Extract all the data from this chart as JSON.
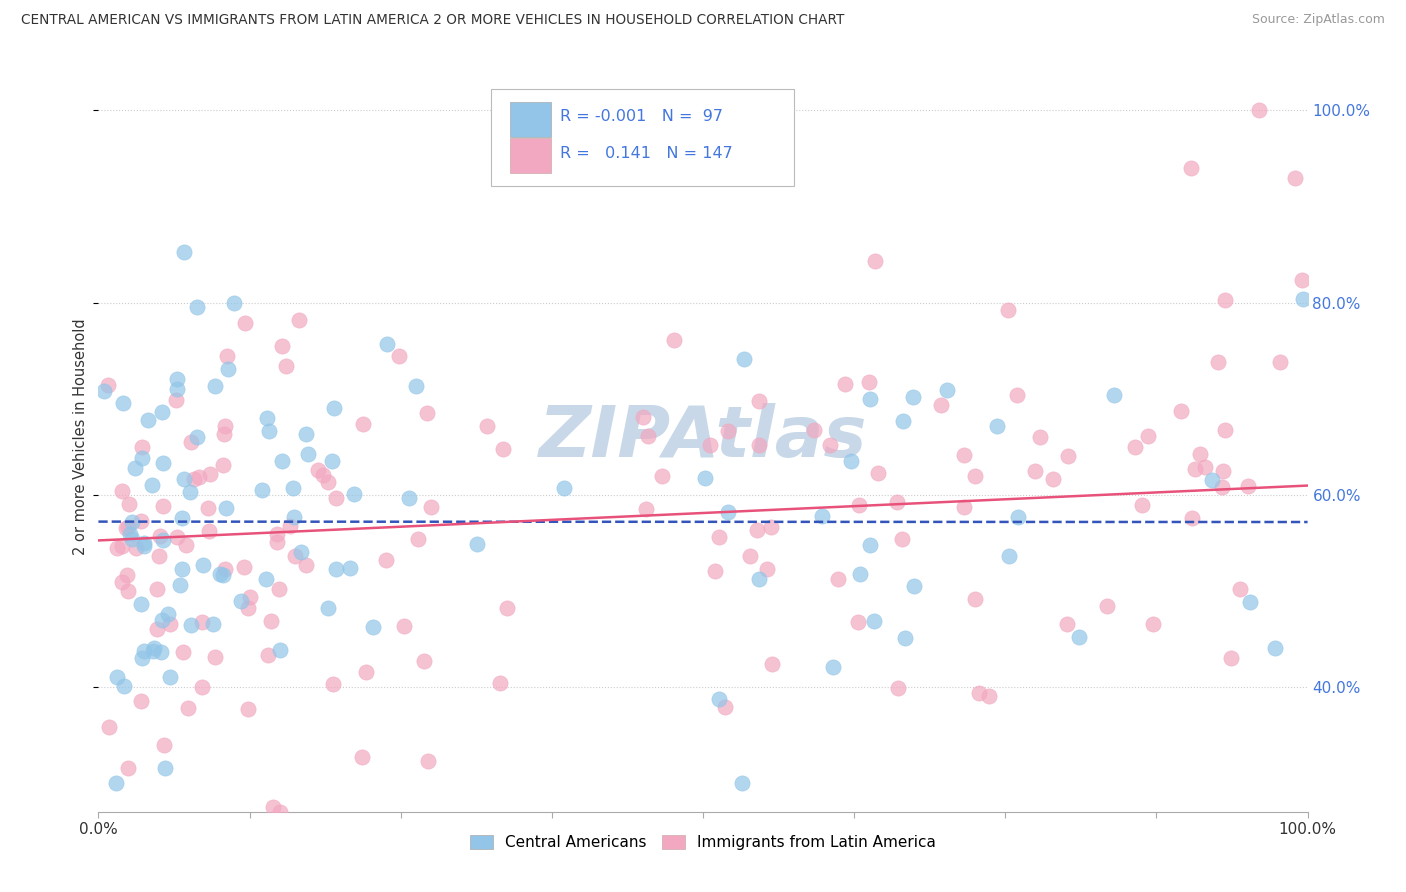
{
  "title": "CENTRAL AMERICAN VS IMMIGRANTS FROM LATIN AMERICA 2 OR MORE VEHICLES IN HOUSEHOLD CORRELATION CHART",
  "source": "Source: ZipAtlas.com",
  "ylabel": "2 or more Vehicles in Household",
  "legend_blue_r": "-0.001",
  "legend_blue_n": "97",
  "legend_pink_r": "0.141",
  "legend_pink_n": "147",
  "legend_label_blue": "Central Americans",
  "legend_label_pink": "Immigrants from Latin America",
  "blue_color": "#92C5E8",
  "pink_color": "#F2A8C0",
  "blue_line_color": "#3355BB",
  "pink_line_color": "#E8527A",
  "r_value_color": "#4477DD",
  "watermark_color": "#C8D8E8",
  "title_color": "#333333",
  "source_color": "#999999",
  "ylabel_color": "#333333",
  "axis_label_color": "#333333",
  "ytick_color": "#4477DD",
  "grid_color": "#CCCCCC"
}
